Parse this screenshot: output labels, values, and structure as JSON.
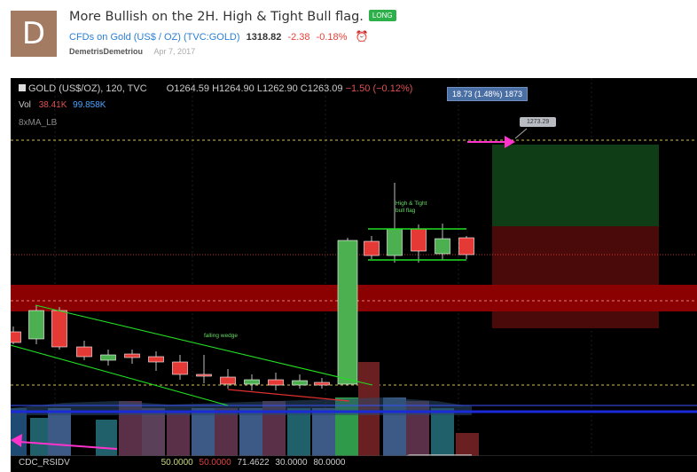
{
  "post": {
    "avatar_letter": "D",
    "title": "More Bullish on the 2H. High & Tight Bull flag.",
    "badge": "LONG",
    "symbol_name": "CFDs on Gold (US$ / OZ)",
    "symbol_code": "(TVC:GOLD)",
    "price": "1318.82",
    "change": "-2.38",
    "change_pct": "-0.18%",
    "author": "DemetrisDemetriou",
    "date": "Apr 7, 2017"
  },
  "chart": {
    "symbol": "GOLD (US$/OZ), 120, TVC",
    "open": "O1264.59",
    "high": "H1264.90",
    "low": "L1262.90",
    "close": "C1263.09",
    "change": "−1.50 (−0.12%)",
    "vol_label": "Vol",
    "vol_value1": "38.41K",
    "vol_value2": "99.858K",
    "ma_label": "8xMA_LB",
    "tooltip": "18.73 (1.48%) 1873",
    "target_label": "1273.29",
    "annotation_flag": "High & Tight\nbull flag",
    "annotation_wedge": "falling wedge",
    "indicator_label": "CDC_RSIDV",
    "indicator_v1": "50.0000",
    "indicator_v2": "50.0000",
    "indicator_v3": "71.4622",
    "indicator_v4": "30.0000",
    "indicator_v5": "80.0000"
  },
  "colors": {
    "bull": "#4caf50",
    "bear": "#e53935",
    "trend": "#22dd22",
    "arrow": "#ff33cc",
    "zone_red": "#8b0000",
    "zone_green": "#0e3d16"
  }
}
